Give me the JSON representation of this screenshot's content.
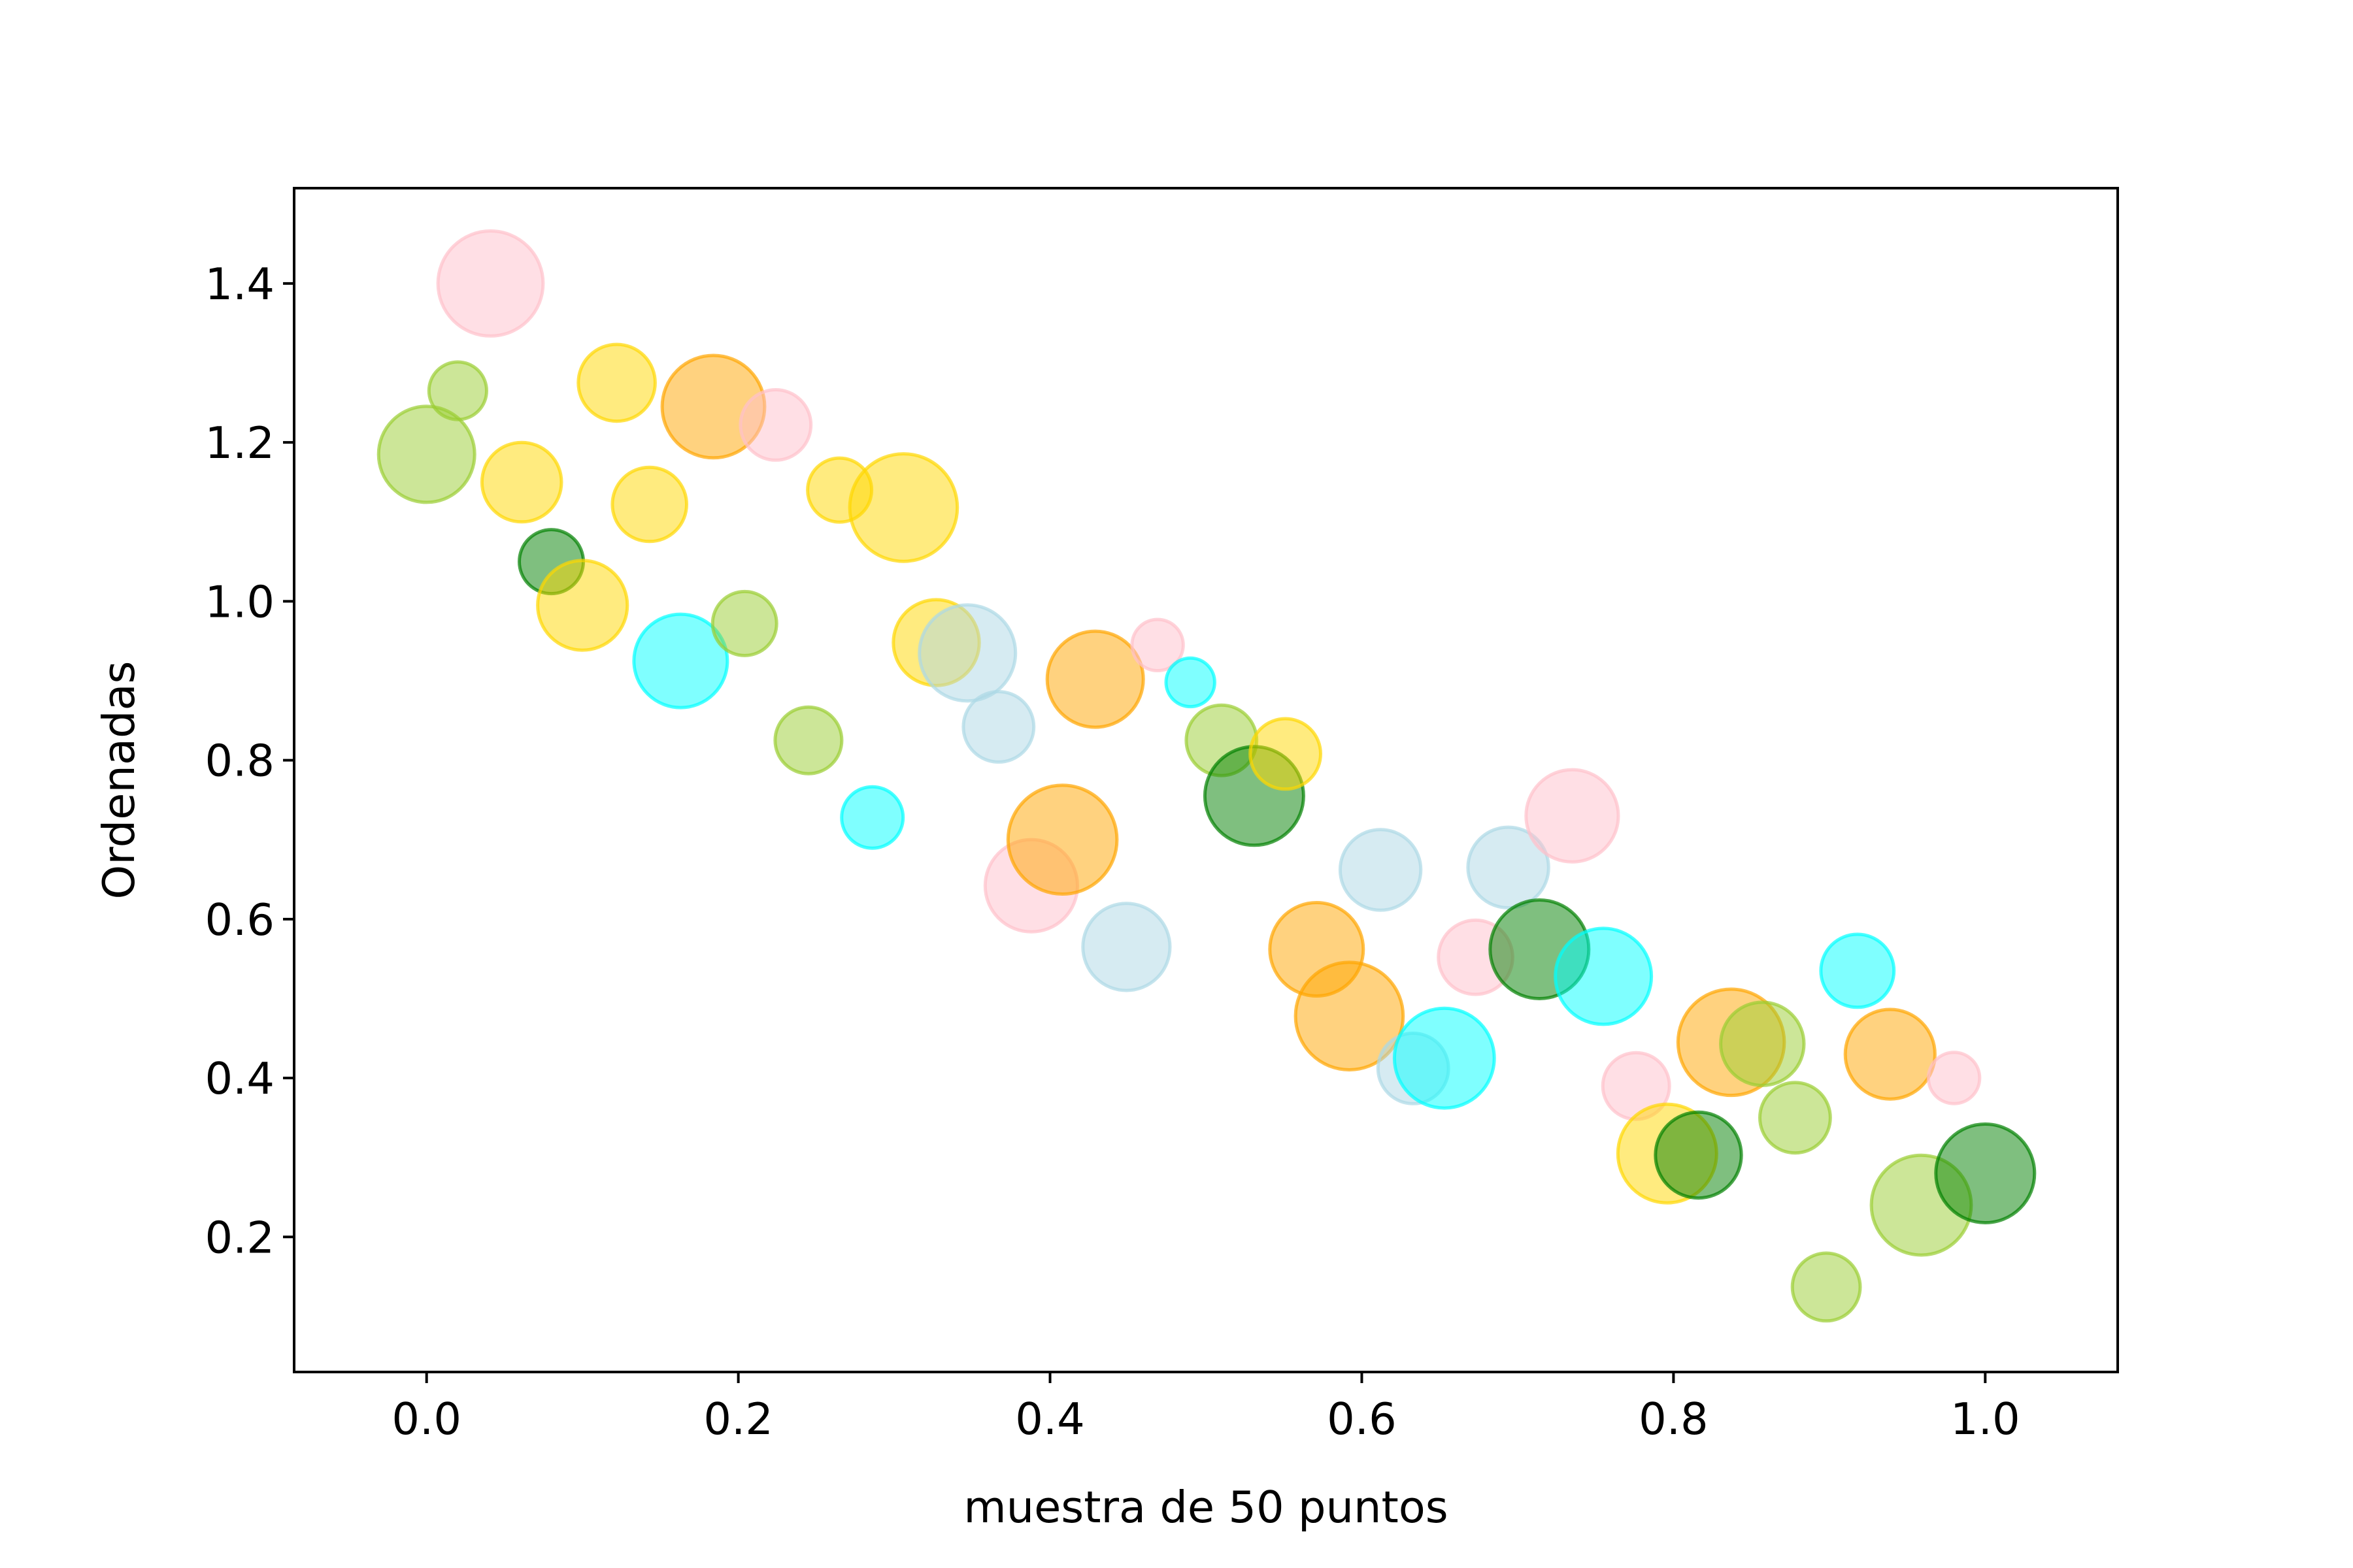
{
  "chart_data": {
    "type": "scatter",
    "title": "",
    "xlabel": "muestra de 50 puntos",
    "ylabel": "Ordenadas",
    "xlim": [
      -0.085,
      1.085
    ],
    "ylim": [
      0.03,
      1.52
    ],
    "xticks": [
      0.0,
      0.2,
      0.4,
      0.6,
      0.8,
      1.0
    ],
    "xtick_labels": [
      "0.0",
      "0.2",
      "0.4",
      "0.6",
      "0.8",
      "1.0"
    ],
    "yticks": [
      0.2,
      0.4,
      0.6,
      0.8,
      1.0,
      1.2,
      1.4
    ],
    "ytick_labels": [
      "0.2",
      "0.4",
      "0.6",
      "0.8",
      "1.0",
      "1.2",
      "1.4"
    ],
    "grid": false,
    "legend": false,
    "marker_alpha": 0.5,
    "colors": {
      "pink": "#ffc0cb",
      "yellowgreen": "#9acd32",
      "gold": "#ffd700",
      "orange": "#ffa500",
      "darkgreen": "#008000",
      "cyan": "#00ffff",
      "lightblue": "#add8e6"
    },
    "points": [
      {
        "x": 0.0,
        "y": 1.185,
        "size": 0.75,
        "color": "yellowgreen"
      },
      {
        "x": 0.02,
        "y": 1.265,
        "size": 0.45,
        "color": "yellowgreen"
      },
      {
        "x": 0.041,
        "y": 1.4,
        "size": 0.82,
        "color": "pink"
      },
      {
        "x": 0.061,
        "y": 1.15,
        "size": 0.62,
        "color": "gold"
      },
      {
        "x": 0.08,
        "y": 1.05,
        "size": 0.5,
        "color": "darkgreen"
      },
      {
        "x": 0.1,
        "y": 0.995,
        "size": 0.7,
        "color": "gold"
      },
      {
        "x": 0.122,
        "y": 1.275,
        "size": 0.6,
        "color": "gold"
      },
      {
        "x": 0.143,
        "y": 1.122,
        "size": 0.58,
        "color": "gold"
      },
      {
        "x": 0.163,
        "y": 0.925,
        "size": 0.73,
        "color": "cyan"
      },
      {
        "x": 0.184,
        "y": 1.245,
        "size": 0.8,
        "color": "orange"
      },
      {
        "x": 0.204,
        "y": 0.972,
        "size": 0.5,
        "color": "yellowgreen"
      },
      {
        "x": 0.224,
        "y": 1.222,
        "size": 0.55,
        "color": "pink"
      },
      {
        "x": 0.245,
        "y": 0.825,
        "size": 0.52,
        "color": "yellowgreen"
      },
      {
        "x": 0.265,
        "y": 1.14,
        "size": 0.5,
        "color": "gold"
      },
      {
        "x": 0.286,
        "y": 0.728,
        "size": 0.48,
        "color": "cyan"
      },
      {
        "x": 0.306,
        "y": 1.118,
        "size": 0.84,
        "color": "gold"
      },
      {
        "x": 0.327,
        "y": 0.948,
        "size": 0.67,
        "color": "gold"
      },
      {
        "x": 0.347,
        "y": 0.935,
        "size": 0.75,
        "color": "lightblue"
      },
      {
        "x": 0.367,
        "y": 0.842,
        "size": 0.55,
        "color": "lightblue"
      },
      {
        "x": 0.388,
        "y": 0.642,
        "size": 0.72,
        "color": "pink"
      },
      {
        "x": 0.408,
        "y": 0.7,
        "size": 0.85,
        "color": "orange"
      },
      {
        "x": 0.429,
        "y": 0.902,
        "size": 0.75,
        "color": "orange"
      },
      {
        "x": 0.449,
        "y": 0.565,
        "size": 0.68,
        "color": "lightblue"
      },
      {
        "x": 0.469,
        "y": 0.945,
        "size": 0.4,
        "color": "pink"
      },
      {
        "x": 0.49,
        "y": 0.898,
        "size": 0.38,
        "color": "cyan"
      },
      {
        "x": 0.51,
        "y": 0.825,
        "size": 0.55,
        "color": "yellowgreen"
      },
      {
        "x": 0.531,
        "y": 0.755,
        "size": 0.77,
        "color": "darkgreen"
      },
      {
        "x": 0.551,
        "y": 0.808,
        "size": 0.55,
        "color": "gold"
      },
      {
        "x": 0.571,
        "y": 0.562,
        "size": 0.73,
        "color": "orange"
      },
      {
        "x": 0.592,
        "y": 0.478,
        "size": 0.84,
        "color": "orange"
      },
      {
        "x": 0.612,
        "y": 0.662,
        "size": 0.63,
        "color": "lightblue"
      },
      {
        "x": 0.633,
        "y": 0.412,
        "size": 0.55,
        "color": "lightblue"
      },
      {
        "x": 0.653,
        "y": 0.425,
        "size": 0.78,
        "color": "cyan"
      },
      {
        "x": 0.673,
        "y": 0.552,
        "size": 0.58,
        "color": "pink"
      },
      {
        "x": 0.694,
        "y": 0.665,
        "size": 0.63,
        "color": "lightblue"
      },
      {
        "x": 0.714,
        "y": 0.562,
        "size": 0.77,
        "color": "darkgreen"
      },
      {
        "x": 0.735,
        "y": 0.73,
        "size": 0.72,
        "color": "pink"
      },
      {
        "x": 0.755,
        "y": 0.528,
        "size": 0.75,
        "color": "cyan"
      },
      {
        "x": 0.776,
        "y": 0.39,
        "size": 0.52,
        "color": "pink"
      },
      {
        "x": 0.796,
        "y": 0.305,
        "size": 0.77,
        "color": "gold"
      },
      {
        "x": 0.816,
        "y": 0.303,
        "size": 0.67,
        "color": "darkgreen"
      },
      {
        "x": 0.837,
        "y": 0.445,
        "size": 0.83,
        "color": "orange"
      },
      {
        "x": 0.857,
        "y": 0.443,
        "size": 0.65,
        "color": "yellowgreen"
      },
      {
        "x": 0.878,
        "y": 0.35,
        "size": 0.55,
        "color": "yellowgreen"
      },
      {
        "x": 0.898,
        "y": 0.137,
        "size": 0.53,
        "color": "yellowgreen"
      },
      {
        "x": 0.918,
        "y": 0.535,
        "size": 0.57,
        "color": "cyan"
      },
      {
        "x": 0.939,
        "y": 0.43,
        "size": 0.7,
        "color": "orange"
      },
      {
        "x": 0.959,
        "y": 0.24,
        "size": 0.78,
        "color": "yellowgreen"
      },
      {
        "x": 0.98,
        "y": 0.4,
        "size": 0.4,
        "color": "pink"
      },
      {
        "x": 1.0,
        "y": 0.28,
        "size": 0.77,
        "color": "darkgreen"
      }
    ]
  }
}
